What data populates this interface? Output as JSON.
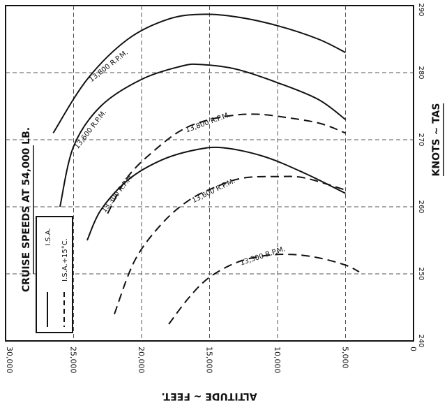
{
  "chart_data": {
    "type": "line",
    "title": "CRUISE SPEEDS AT 54,000 LB.",
    "xlabel": "ALTITUDE ~ FEET.",
    "ylabel": "KNOTS ~ TAS",
    "x_ticks": [
      "30,000",
      "25,000",
      "20,000",
      "15,000",
      "10,000",
      "5,000",
      "0"
    ],
    "x_tick_values": [
      30000,
      25000,
      20000,
      15000,
      10000,
      5000,
      0
    ],
    "y_ticks": [
      "290",
      "280",
      "270",
      "260",
      "250",
      "240"
    ],
    "y_tick_values": [
      290,
      280,
      270,
      260,
      250,
      240
    ],
    "xlim": [
      30000,
      0
    ],
    "ylim": [
      240,
      290
    ],
    "grid": true,
    "legend": {
      "placement": "bottom-left",
      "items": [
        {
          "label": "I.S.A.",
          "style": "solid"
        },
        {
          "label": "I.S.A.+15°C.",
          "style": "dashed"
        }
      ]
    },
    "series": [
      {
        "name": "13,800 R.P.M.",
        "condition": "I.S.A.",
        "style": "solid",
        "x": [
          26500,
          24000,
          21000,
          18000,
          15500,
          13000,
          10000,
          7000,
          5000
        ],
        "y": [
          271.0,
          279.0,
          285.0,
          288.0,
          288.7,
          288.3,
          287.0,
          285.0,
          283.0
        ]
      },
      {
        "name": "13,600 R.P.M.",
        "condition": "I.S.A.",
        "style": "solid",
        "x": [
          26000,
          25000,
          23000,
          20000,
          17000,
          15500,
          13000,
          10000,
          7000,
          5000
        ],
        "y": [
          260.0,
          269.0,
          275.0,
          279.0,
          281.0,
          281.2,
          280.5,
          278.5,
          276.0,
          273.0
        ]
      },
      {
        "name": "13,300 R.P.M.",
        "condition": "I.S.A.",
        "style": "solid",
        "x": [
          24000,
          23000,
          21000,
          18500,
          16000,
          14000,
          11000,
          8000,
          5000
        ],
        "y": [
          255.0,
          259.5,
          264.0,
          267.0,
          268.5,
          268.8,
          267.5,
          265.0,
          262.0
        ]
      },
      {
        "name": "13,800 R.P.M.",
        "condition": "I.S.A.+15°C.",
        "style": "dashed",
        "x": [
          22500,
          21000,
          19000,
          17000,
          15000,
          13000,
          11500,
          10000,
          7000,
          5000
        ],
        "y": [
          259.0,
          264.5,
          268.5,
          271.5,
          273.0,
          273.7,
          273.8,
          273.5,
          272.5,
          271.0
        ]
      },
      {
        "name": "13,600 R.P.M.",
        "condition": "I.S.A.+15°C.",
        "style": "dashed",
        "x": [
          22000,
          20500,
          18500,
          16500,
          14500,
          12500,
          10000,
          8000,
          5000
        ],
        "y": [
          244.0,
          252.0,
          257.5,
          261.0,
          263.0,
          264.3,
          264.5,
          264.3,
          262.5
        ]
      },
      {
        "name": "13,300 R.P.M.",
        "condition": "I.S.A.+15°C.",
        "style": "dashed",
        "x": [
          18000,
          16500,
          15000,
          13000,
          11000,
          9000,
          7000,
          5000,
          4000
        ],
        "y": [
          242.5,
          246.5,
          249.5,
          251.7,
          252.7,
          252.9,
          252.4,
          251.3,
          250.3
        ]
      }
    ]
  }
}
